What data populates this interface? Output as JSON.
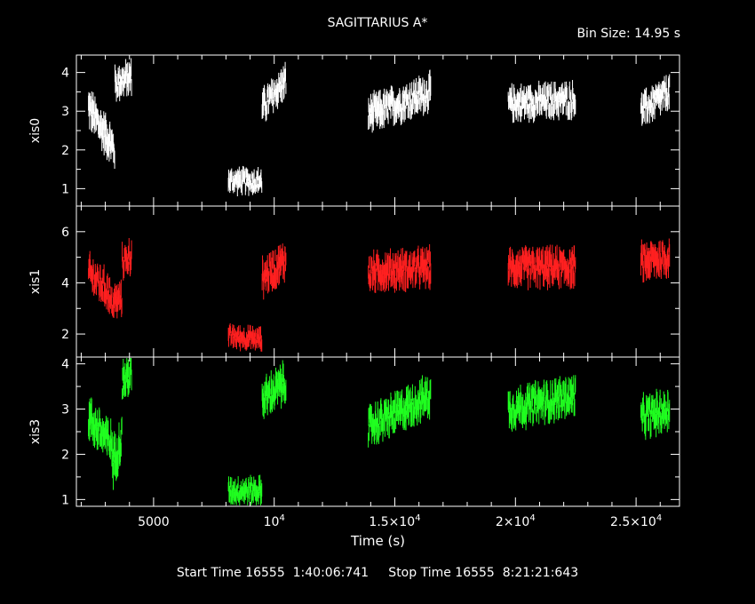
{
  "title": "SAGITTARIUS A*",
  "bin_size_label": "Bin Size: 14.95 s",
  "footer": "Start Time 16555  1:40:06:741     Stop Time 16555  8:21:21:643",
  "colors": {
    "xis0": "#ffffff",
    "xis1": "#ff2020",
    "xis3": "#20ff20",
    "axes": "#ffffff",
    "background": "#000000"
  },
  "chart_data": {
    "type": "scatter",
    "xlabel": "Time (s)",
    "xlim": [
      1800,
      26800
    ],
    "xticks": [
      {
        "value": 5000,
        "label": "5000"
      },
      {
        "value": 10000,
        "label": "10",
        "exp": "4"
      },
      {
        "value": 15000,
        "label": "1.5×10",
        "exp": "4"
      },
      {
        "value": 20000,
        "label": "2×10",
        "exp": "4"
      },
      {
        "value": 25000,
        "label": "2.5×10",
        "exp": "4"
      }
    ],
    "panels": [
      {
        "name": "xis0",
        "ylabel": "xis0",
        "color": "#ffffff",
        "ylim": [
          0.55,
          4.45
        ],
        "yticks": [
          1,
          2,
          3,
          4
        ],
        "segments": [
          {
            "x0": 2300,
            "x1": 3400,
            "y0": 3.1,
            "y1": 2.0,
            "noise": 0.35
          },
          {
            "x0": 3400,
            "x1": 4100,
            "y0": 3.7,
            "y1": 3.9,
            "noise": 0.3
          },
          {
            "x0": 8100,
            "x1": 9500,
            "y0": 1.2,
            "y1": 1.2,
            "noise": 0.22
          },
          {
            "x0": 9500,
            "x1": 10500,
            "y0": 3.1,
            "y1": 3.8,
            "noise": 0.3
          },
          {
            "x0": 13900,
            "x1": 16500,
            "y0": 2.9,
            "y1": 3.5,
            "noise": 0.32
          },
          {
            "x0": 19700,
            "x1": 22500,
            "y0": 3.2,
            "y1": 3.3,
            "noise": 0.3
          },
          {
            "x0": 25200,
            "x1": 26400,
            "y0": 3.0,
            "y1": 3.5,
            "noise": 0.3
          }
        ]
      },
      {
        "name": "xis1",
        "ylabel": "xis1",
        "color": "#ff2020",
        "ylim": [
          1.1,
          7.0
        ],
        "yticks": [
          2,
          4,
          6
        ],
        "segments": [
          {
            "x0": 2300,
            "x1": 3200,
            "y0": 4.4,
            "y1": 3.6,
            "noise": 0.5
          },
          {
            "x0": 3200,
            "x1": 3700,
            "y0": 3.2,
            "y1": 3.4,
            "noise": 0.45
          },
          {
            "x0": 3700,
            "x1": 4100,
            "y0": 4.8,
            "y1": 5.1,
            "noise": 0.45
          },
          {
            "x0": 8100,
            "x1": 9500,
            "y0": 1.9,
            "y1": 1.8,
            "noise": 0.3
          },
          {
            "x0": 9500,
            "x1": 10500,
            "y0": 4.2,
            "y1": 4.9,
            "noise": 0.5
          },
          {
            "x0": 13900,
            "x1": 16500,
            "y0": 4.4,
            "y1": 4.6,
            "noise": 0.5
          },
          {
            "x0": 19700,
            "x1": 22500,
            "y0": 4.6,
            "y1": 4.6,
            "noise": 0.5
          },
          {
            "x0": 25200,
            "x1": 26400,
            "y0": 4.8,
            "y1": 5.0,
            "noise": 0.5
          }
        ]
      },
      {
        "name": "xis3",
        "ylabel": "xis3",
        "color": "#20ff20",
        "ylim": [
          0.85,
          4.15
        ],
        "yticks": [
          1,
          2,
          3,
          4
        ],
        "segments": [
          {
            "x0": 2300,
            "x1": 3300,
            "y0": 2.8,
            "y1": 2.2,
            "noise": 0.32
          },
          {
            "x0": 3300,
            "x1": 3700,
            "y0": 1.8,
            "y1": 2.4,
            "noise": 0.35
          },
          {
            "x0": 3700,
            "x1": 4100,
            "y0": 3.6,
            "y1": 3.8,
            "noise": 0.3
          },
          {
            "x0": 8100,
            "x1": 9500,
            "y0": 1.2,
            "y1": 1.2,
            "noise": 0.2
          },
          {
            "x0": 9500,
            "x1": 10500,
            "y0": 3.2,
            "y1": 3.6,
            "noise": 0.3
          },
          {
            "x0": 13900,
            "x1": 16500,
            "y0": 2.6,
            "y1": 3.3,
            "noise": 0.3
          },
          {
            "x0": 19700,
            "x1": 22500,
            "y0": 3.0,
            "y1": 3.3,
            "noise": 0.3
          },
          {
            "x0": 25200,
            "x1": 26400,
            "y0": 2.8,
            "y1": 3.0,
            "noise": 0.3
          }
        ]
      }
    ]
  }
}
